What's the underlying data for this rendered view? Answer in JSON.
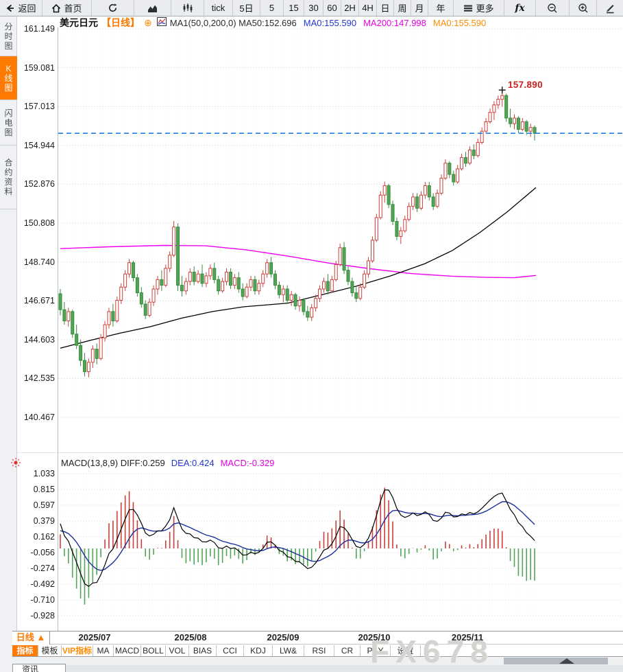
{
  "app": {
    "watermark": "FX678"
  },
  "toolbar": {
    "items": [
      {
        "label": "返回"
      },
      {
        "label": "首页"
      },
      {
        "label": ""
      },
      {
        "label": ""
      },
      {
        "label": ""
      },
      {
        "label": "tick"
      },
      {
        "label": "5日"
      },
      {
        "label": "5"
      },
      {
        "label": "15"
      },
      {
        "label": "30"
      },
      {
        "label": "60"
      },
      {
        "label": "2H"
      },
      {
        "label": "4H"
      },
      {
        "label": "日"
      },
      {
        "label": "周"
      },
      {
        "label": "月"
      },
      {
        "label": "年"
      },
      {
        "label": "更多"
      },
      {
        "label": "fx"
      },
      {
        "label": ""
      },
      {
        "label": ""
      },
      {
        "label": ""
      }
    ]
  },
  "sidebar": {
    "tabs": [
      {
        "label": "分时图",
        "active": false
      },
      {
        "label": "K线图",
        "active": true
      },
      {
        "label": "闪电图",
        "active": false
      },
      {
        "label": "合约资料",
        "active": false
      }
    ]
  },
  "chart_header": {
    "symbol": "美元日元",
    "period": "【日线】",
    "plus_icon": "⊕",
    "ma_formula": "MA1(50,0,200,0) MA50:152.696",
    "ma0_blue": "MA0:155.590",
    "ma200": "MA200:147.998",
    "ma0_orange": "MA0:155.590"
  },
  "macd_header": {
    "formula": "MACD(13,8,9) DIFF:0.259",
    "dea": "DEA:0.424",
    "macd": "MACD:-0.329"
  },
  "annotation": {
    "high_label": "157.890"
  },
  "bottom": {
    "period_selector": "日线 ▲",
    "x_labels": [
      "2025/07",
      "2025/08",
      "2025/09",
      "2025/10",
      "2025/11"
    ],
    "tabs": [
      {
        "label": "指标",
        "state": "active"
      },
      {
        "label": "模板",
        "state": ""
      },
      {
        "label": "VIP指标",
        "state": "vip"
      },
      {
        "label": "MA",
        "state": ""
      },
      {
        "label": "MACD",
        "state": ""
      },
      {
        "label": "BOLL",
        "state": ""
      },
      {
        "label": "VOL",
        "state": ""
      },
      {
        "label": "BIAS",
        "state": ""
      },
      {
        "label": "CCI",
        "state": ""
      },
      {
        "label": "KDJ",
        "state": ""
      },
      {
        "label": "LW&",
        "state": ""
      },
      {
        "label": "RSI",
        "state": ""
      },
      {
        "label": "CR",
        "state": ""
      },
      {
        "label": "PSY",
        "state": ""
      },
      {
        "label": "设置",
        "state": ""
      }
    ],
    "news_tab": "资讯"
  },
  "chart_data": {
    "type": "candlestick+macd",
    "main": {
      "y_ticks": [
        "161.149",
        "159.081",
        "157.013",
        "154.944",
        "152.876",
        "150.808",
        "148.740",
        "146.671",
        "144.603",
        "142.535",
        "140.467"
      ],
      "current_price": 155.59,
      "high_annotation": 157.89,
      "colors": {
        "up": "#c9403a",
        "down_fill": "#52a457",
        "down": "#368c3c",
        "ma50": "#000000",
        "ma200": "#f000f0",
        "price_line": "#1d7fe6",
        "grid": "#dcdcdc",
        "vgrid": "#f3f0f0"
      },
      "ma50_points": [
        [
          88,
          144.15
        ],
        [
          130,
          144.55
        ],
        [
          175,
          144.95
        ],
        [
          220,
          145.3
        ],
        [
          265,
          145.75
        ],
        [
          310,
          146.1
        ],
        [
          355,
          146.35
        ],
        [
          420,
          146.55
        ],
        [
          470,
          147.0
        ],
        [
          520,
          147.45
        ],
        [
          570,
          148.0
        ],
        [
          620,
          148.65
        ],
        [
          660,
          149.35
        ],
        [
          700,
          150.3
        ],
        [
          740,
          151.4
        ],
        [
          782,
          152.7
        ]
      ],
      "ma200_points": [
        [
          88,
          149.45
        ],
        [
          160,
          149.55
        ],
        [
          240,
          149.62
        ],
        [
          300,
          149.6
        ],
        [
          360,
          149.38
        ],
        [
          420,
          149.05
        ],
        [
          480,
          148.68
        ],
        [
          540,
          148.38
        ],
        [
          600,
          148.12
        ],
        [
          660,
          147.98
        ],
        [
          710,
          147.92
        ],
        [
          750,
          147.9
        ],
        [
          782,
          148.02
        ]
      ],
      "candles": [
        [
          147.05,
          147.3,
          145.9,
          146.2
        ],
        [
          146.2,
          146.6,
          145.4,
          145.6
        ],
        [
          145.6,
          146.3,
          145.3,
          146.1
        ],
        [
          146.1,
          146.2,
          144.7,
          144.9
        ],
        [
          144.9,
          145.4,
          144.1,
          144.3
        ],
        [
          144.3,
          144.6,
          143.2,
          143.5
        ],
        [
          143.5,
          143.9,
          142.65,
          142.9
        ],
        [
          142.9,
          143.6,
          142.6,
          143.4
        ],
        [
          143.4,
          144.3,
          143.1,
          144.1
        ],
        [
          144.1,
          144.4,
          143.3,
          143.6
        ],
        [
          143.6,
          144.9,
          143.5,
          144.7
        ],
        [
          144.7,
          145.6,
          144.5,
          145.4
        ],
        [
          145.4,
          146.3,
          145.2,
          146.1
        ],
        [
          146.1,
          146.5,
          145.3,
          145.6
        ],
        [
          145.6,
          146.9,
          145.5,
          146.7
        ],
        [
          146.7,
          147.6,
          146.5,
          147.4
        ],
        [
          147.4,
          148.3,
          147.2,
          148.1
        ],
        [
          148.1,
          148.9,
          147.9,
          148.7
        ],
        [
          148.7,
          148.8,
          147.7,
          147.9
        ],
        [
          147.9,
          148.1,
          146.9,
          147.1
        ],
        [
          147.1,
          147.4,
          146.3,
          146.5
        ],
        [
          146.5,
          146.7,
          145.7,
          145.9
        ],
        [
          145.9,
          146.8,
          145.8,
          146.6
        ],
        [
          146.6,
          147.5,
          146.4,
          147.3
        ],
        [
          147.3,
          148.0,
          147.0,
          147.8
        ],
        [
          147.8,
          148.3,
          147.2,
          147.5
        ],
        [
          147.5,
          148.6,
          147.4,
          148.4
        ],
        [
          148.4,
          149.3,
          148.2,
          149.1
        ],
        [
          149.1,
          150.92,
          149.0,
          150.6
        ],
        [
          150.6,
          150.8,
          147.2,
          147.5
        ],
        [
          147.5,
          148.0,
          146.9,
          147.2
        ],
        [
          147.2,
          147.9,
          147.0,
          147.7
        ],
        [
          147.7,
          148.4,
          147.5,
          148.2
        ],
        [
          148.2,
          148.5,
          147.5,
          147.7
        ],
        [
          147.7,
          148.3,
          147.6,
          148.1
        ],
        [
          148.1,
          148.6,
          147.4,
          147.6
        ],
        [
          147.6,
          148.2,
          147.4,
          148.0
        ],
        [
          148.0,
          148.6,
          147.8,
          148.4
        ],
        [
          148.4,
          148.7,
          147.6,
          147.8
        ],
        [
          147.8,
          148.0,
          147.0,
          147.2
        ],
        [
          147.2,
          147.9,
          147.1,
          147.7
        ],
        [
          147.7,
          148.4,
          147.5,
          148.2
        ],
        [
          148.2,
          148.4,
          147.3,
          147.5
        ],
        [
          147.5,
          148.1,
          147.3,
          147.9
        ],
        [
          147.9,
          148.2,
          147.1,
          147.3
        ],
        [
          147.3,
          147.6,
          146.7,
          146.9
        ],
        [
          146.9,
          147.6,
          146.8,
          147.4
        ],
        [
          147.4,
          148.0,
          147.2,
          147.8
        ],
        [
          147.8,
          148.0,
          147.0,
          147.2
        ],
        [
          147.2,
          147.8,
          147.0,
          147.6
        ],
        [
          147.6,
          148.3,
          147.4,
          148.1
        ],
        [
          148.1,
          148.9,
          147.9,
          148.7
        ],
        [
          148.7,
          149.0,
          147.9,
          148.1
        ],
        [
          148.1,
          148.3,
          147.3,
          147.5
        ],
        [
          147.5,
          147.7,
          146.8,
          147.0
        ],
        [
          147.0,
          147.5,
          146.6,
          147.3
        ],
        [
          147.3,
          147.5,
          146.5,
          146.7
        ],
        [
          146.7,
          147.2,
          146.4,
          147.0
        ],
        [
          147.0,
          147.1,
          146.2,
          146.4
        ],
        [
          146.4,
          146.9,
          146.1,
          146.7
        ],
        [
          146.7,
          146.8,
          145.9,
          146.1
        ],
        [
          146.1,
          146.4,
          145.6,
          145.8
        ],
        [
          145.8,
          146.5,
          145.6,
          146.3
        ],
        [
          146.3,
          147.0,
          146.1,
          146.8
        ],
        [
          146.8,
          147.5,
          146.6,
          147.3
        ],
        [
          147.3,
          147.9,
          147.1,
          147.7
        ],
        [
          147.7,
          148.1,
          147.0,
          147.2
        ],
        [
          147.2,
          148.0,
          147.1,
          147.8
        ],
        [
          147.8,
          148.8,
          147.7,
          148.6
        ],
        [
          148.6,
          149.72,
          148.5,
          149.5
        ],
        [
          149.5,
          149.8,
          148.1,
          148.3
        ],
        [
          148.3,
          148.5,
          147.5,
          147.7
        ],
        [
          147.7,
          147.9,
          146.9,
          147.1
        ],
        [
          147.1,
          147.4,
          146.6,
          146.8
        ],
        [
          146.8,
          147.6,
          146.7,
          147.4
        ],
        [
          147.4,
          148.3,
          147.3,
          148.1
        ],
        [
          148.1,
          149.0,
          147.9,
          148.8
        ],
        [
          148.8,
          150.1,
          148.7,
          149.9
        ],
        [
          149.9,
          151.3,
          149.8,
          151.1
        ],
        [
          151.1,
          152.5,
          151.0,
          152.3
        ],
        [
          152.3,
          153.02,
          151.9,
          152.8
        ],
        [
          152.8,
          152.9,
          151.6,
          151.8
        ],
        [
          151.8,
          152.0,
          150.7,
          150.9
        ],
        [
          150.9,
          151.1,
          149.9,
          150.1
        ],
        [
          150.1,
          150.6,
          149.7,
          150.4
        ],
        [
          150.4,
          151.2,
          150.3,
          151.0
        ],
        [
          151.0,
          151.9,
          150.9,
          151.7
        ],
        [
          151.7,
          152.4,
          151.5,
          152.2
        ],
        [
          152.2,
          152.4,
          151.4,
          151.6
        ],
        [
          151.6,
          152.5,
          151.5,
          152.3
        ],
        [
          152.3,
          153.0,
          152.1,
          152.8
        ],
        [
          152.8,
          153.0,
          152.0,
          152.2
        ],
        [
          152.2,
          152.4,
          151.5,
          151.7
        ],
        [
          151.7,
          152.6,
          151.6,
          152.4
        ],
        [
          152.4,
          153.4,
          152.3,
          153.2
        ],
        [
          153.2,
          154.2,
          153.1,
          154.0
        ],
        [
          154.0,
          154.1,
          153.2,
          153.4
        ],
        [
          153.4,
          153.6,
          152.8,
          153.0
        ],
        [
          153.0,
          153.9,
          152.9,
          153.7
        ],
        [
          153.7,
          154.5,
          153.6,
          154.3
        ],
        [
          154.3,
          154.6,
          153.8,
          154.0
        ],
        [
          154.0,
          154.9,
          153.9,
          154.7
        ],
        [
          154.7,
          155.0,
          154.2,
          154.4
        ],
        [
          154.4,
          155.3,
          154.3,
          155.1
        ],
        [
          155.1,
          155.9,
          155.0,
          155.7
        ],
        [
          155.7,
          156.4,
          155.6,
          156.2
        ],
        [
          156.2,
          156.9,
          156.1,
          156.7
        ],
        [
          156.7,
          157.3,
          156.3,
          157.1
        ],
        [
          157.1,
          157.6,
          156.9,
          157.4
        ],
        [
          157.4,
          157.89,
          157.0,
          157.6
        ],
        [
          157.6,
          157.7,
          156.2,
          156.4
        ],
        [
          156.4,
          156.9,
          155.9,
          156.1
        ],
        [
          156.1,
          156.6,
          155.8,
          156.4
        ],
        [
          156.4,
          156.5,
          155.6,
          155.8
        ],
        [
          155.8,
          156.4,
          155.7,
          156.2
        ],
        [
          156.2,
          156.3,
          155.5,
          155.7
        ],
        [
          155.7,
          156.1,
          155.4,
          155.9
        ],
        [
          155.9,
          156.0,
          155.2,
          155.59
        ]
      ]
    },
    "macd": {
      "y_ticks": [
        "1.033",
        "0.815",
        "0.597",
        "0.379",
        "0.162",
        "-0.056",
        "-0.274",
        "-0.492",
        "-0.710",
        "-0.928"
      ],
      "params": {
        "fast": 8,
        "slow": 13,
        "signal": 9
      },
      "seeds": {
        "ema_fast": 147.3,
        "ema_slow": 146.8,
        "dea": 0.22
      },
      "latest": {
        "diff": 0.259,
        "dea": 0.424,
        "macd": -0.329
      },
      "colors": {
        "diff": "#000000",
        "dea": "#1b2f9e",
        "hist_pos": "#c9403a",
        "hist_neg": "#52a457"
      }
    }
  }
}
